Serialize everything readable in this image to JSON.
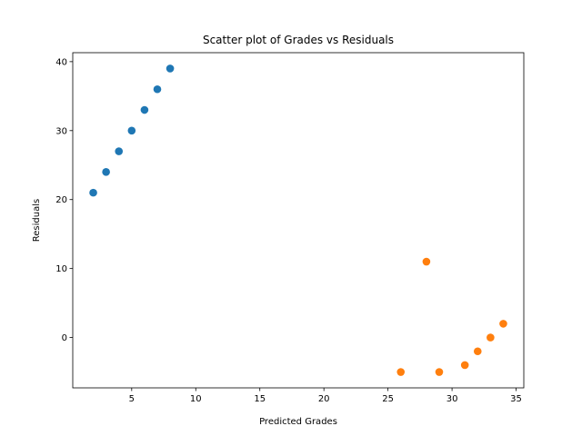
{
  "chart_data": {
    "type": "scatter",
    "title": "Scatter plot of Grades vs Residuals",
    "xlabel": "Predicted Grades",
    "ylabel": "Residuals",
    "xlim": [
      0.4,
      35.6
    ],
    "ylim": [
      -7.3,
      41.3
    ],
    "xticks": [
      5,
      10,
      15,
      20,
      25,
      30,
      35
    ],
    "yticks": [
      0,
      10,
      20,
      30,
      40
    ],
    "grid": false,
    "legend": "none",
    "series": [
      {
        "color": "#1f77b4",
        "points": [
          [
            2,
            21
          ],
          [
            3,
            24
          ],
          [
            4,
            27
          ],
          [
            5,
            30
          ],
          [
            6,
            33
          ],
          [
            7,
            36
          ],
          [
            8,
            39
          ]
        ]
      },
      {
        "color": "#ff7f0e",
        "points": [
          [
            26,
            -5
          ],
          [
            28,
            11
          ],
          [
            29,
            -5
          ],
          [
            31,
            -4
          ],
          [
            32,
            -2
          ],
          [
            33,
            0
          ],
          [
            34,
            2
          ]
        ]
      }
    ]
  }
}
